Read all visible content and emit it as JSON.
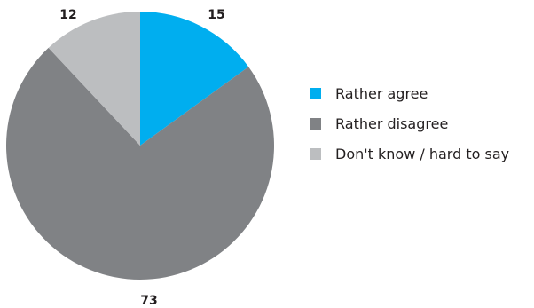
{
  "chart_data": {
    "type": "pie",
    "title": "",
    "slices": [
      {
        "label": "Rather agree",
        "value": 15,
        "color": "#00aeef"
      },
      {
        "label": "Rather disagree",
        "value": 73,
        "color": "#808285"
      },
      {
        "label": "Don't know / hard to say",
        "value": 12,
        "color": "#bcbec0"
      }
    ],
    "legend_position": "right"
  }
}
